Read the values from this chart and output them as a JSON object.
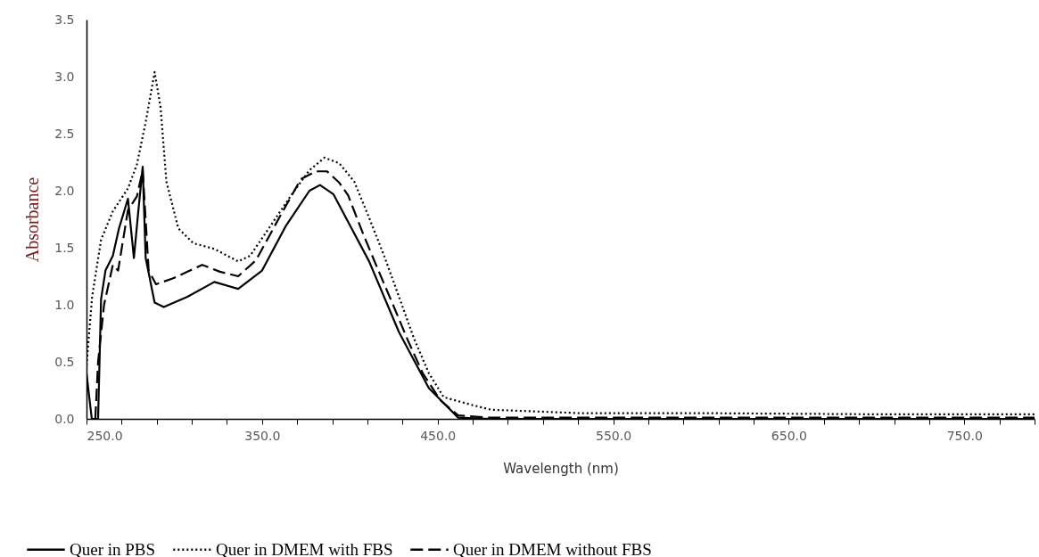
{
  "chart_data": {
    "type": "line",
    "xlabel": "Wavelength (nm)",
    "ylabel": "Absorbance",
    "xlim": [
      250,
      790
    ],
    "ylim": [
      0,
      3.5
    ],
    "xticks": [
      {
        "value": 250,
        "label": "250.0"
      },
      {
        "value": 270,
        "label": null
      },
      {
        "value": 290,
        "label": null
      },
      {
        "value": 310,
        "label": null
      },
      {
        "value": 330,
        "label": null
      },
      {
        "value": 350,
        "label": "350.0"
      },
      {
        "value": 370,
        "label": null
      },
      {
        "value": 390,
        "label": null
      },
      {
        "value": 410,
        "label": null
      },
      {
        "value": 430,
        "label": null
      },
      {
        "value": 450,
        "label": "450.0"
      },
      {
        "value": 470,
        "label": null
      },
      {
        "value": 490,
        "label": null
      },
      {
        "value": 510,
        "label": null
      },
      {
        "value": 530,
        "label": null
      },
      {
        "value": 550,
        "label": "550.0"
      },
      {
        "value": 570,
        "label": null
      },
      {
        "value": 590,
        "label": null
      },
      {
        "value": 610,
        "label": null
      },
      {
        "value": 630,
        "label": null
      },
      {
        "value": 650,
        "label": "650.0"
      },
      {
        "value": 670,
        "label": null
      },
      {
        "value": 690,
        "label": null
      },
      {
        "value": 710,
        "label": null
      },
      {
        "value": 730,
        "label": null
      },
      {
        "value": 750,
        "label": "750.0"
      },
      {
        "value": 770,
        "label": null
      },
      {
        "value": 790,
        "label": null
      }
    ],
    "yticks": [
      {
        "value": 0,
        "label": "0.0"
      },
      {
        "value": 0.5,
        "label": "0.5"
      },
      {
        "value": 1,
        "label": "1.0"
      },
      {
        "value": 1.5,
        "label": "1.5"
      },
      {
        "value": 2,
        "label": "2.0"
      },
      {
        "value": 2.5,
        "label": "2.5"
      },
      {
        "value": 3,
        "label": "3.0"
      },
      {
        "value": 3.5,
        "label": "3.5"
      }
    ],
    "grid": false,
    "legend": "bottom",
    "marker": "none",
    "series": [
      {
        "name": "Quer in PBS",
        "color": "#000000",
        "line_style": "solid",
        "x": [
          250,
          253,
          256.6,
          258.3,
          260.8,
          265,
          268.5,
          273.6,
          277,
          279.5,
          282,
          283.7,
          288.8,
          294,
          307.5,
          322.8,
          336.4,
          350,
          363.5,
          377,
          383,
          390.6,
          411,
          428,
          445,
          461.7,
          480,
          550,
          650,
          790
        ],
        "values": [
          0.4,
          0,
          0,
          1.05,
          1.3,
          1.43,
          1.67,
          1.93,
          1.41,
          1.82,
          2.21,
          1.41,
          1.02,
          0.98,
          1.07,
          1.2,
          1.14,
          1.3,
          1.69,
          2,
          2.05,
          1.97,
          1.38,
          0.76,
          0.27,
          0.01,
          0,
          0,
          0,
          0
        ]
      },
      {
        "name": "Quer in DMEM with FBS",
        "color": "#000000",
        "line_style": "dotted",
        "x": [
          250,
          253.2,
          258.3,
          265,
          273.6,
          278.7,
          283.7,
          288.8,
          292.2,
          295.5,
          302.3,
          310.8,
          322.8,
          336.4,
          343.2,
          353.4,
          367,
          377,
          385.6,
          394,
          402.5,
          410.8,
          419.5,
          428,
          436.4,
          445,
          453.5,
          470,
          480.5,
          531,
          600,
          700,
          790
        ],
        "values": [
          0.47,
          1.07,
          1.57,
          1.82,
          2.02,
          2.23,
          2.6,
          3.04,
          2.73,
          2.08,
          1.67,
          1.54,
          1.49,
          1.38,
          1.43,
          1.66,
          1.97,
          2.18,
          2.29,
          2.24,
          2.08,
          1.77,
          1.43,
          1.07,
          0.71,
          0.4,
          0.19,
          0.12,
          0.08,
          0.05,
          0.05,
          0.04,
          0.04
        ]
      },
      {
        "name": "Quer in DMEM without FBS",
        "color": "#000000",
        "line_style": "dashed",
        "x": [
          255,
          256.6,
          260,
          265,
          268,
          273.6,
          278.7,
          282,
          285.4,
          289.6,
          299,
          315.9,
          326,
          336.4,
          346.5,
          360,
          372,
          380.5,
          387,
          394,
          399,
          407.6,
          416,
          424.6,
          433,
          441.5,
          451.7,
          461.7,
          480,
          600,
          790
        ],
        "values": [
          0,
          0.5,
          1,
          1.35,
          1.3,
          1.83,
          1.95,
          2.18,
          1.3,
          1.18,
          1.23,
          1.35,
          1.29,
          1.25,
          1.39,
          1.77,
          2.1,
          2.17,
          2.17,
          2.07,
          1.96,
          1.62,
          1.31,
          1,
          0.69,
          0.4,
          0.16,
          0.03,
          0.01,
          0.01,
          0.01
        ]
      }
    ]
  }
}
